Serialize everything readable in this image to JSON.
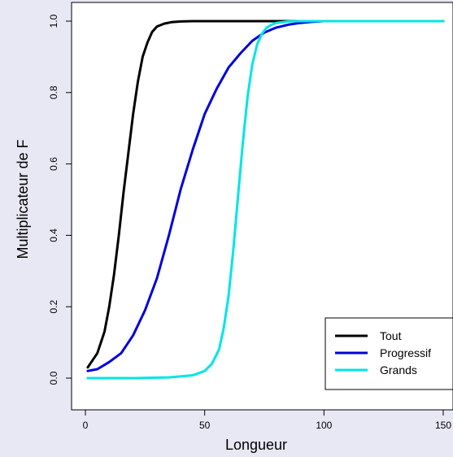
{
  "chart_data": {
    "type": "line",
    "xlabel": "Longueur",
    "ylabel": "Multiplicateur de F",
    "xlim": [
      0,
      150
    ],
    "ylim": [
      0,
      1
    ],
    "x_ticks": [
      0,
      50,
      100,
      150
    ],
    "x_tick_labels": [
      "0",
      "50",
      "100",
      "150"
    ],
    "y_ticks": [
      0,
      0.2,
      0.4,
      0.6,
      0.8,
      1.0
    ],
    "y_tick_labels": [
      "0.0",
      "0.2",
      "0.4",
      "0.6",
      "0.8",
      "1.0"
    ],
    "grid": false,
    "legend_position": "bottom-right",
    "series": [
      {
        "name": "Tout",
        "color": "#000000",
        "x": [
          1,
          5,
          8,
          10,
          12,
          14,
          16,
          18,
          20,
          22,
          24,
          26,
          28,
          30,
          33,
          36,
          40,
          45,
          50,
          60,
          80,
          100,
          120,
          150
        ],
        "y": [
          0.03,
          0.07,
          0.13,
          0.2,
          0.29,
          0.4,
          0.52,
          0.63,
          0.74,
          0.83,
          0.9,
          0.94,
          0.97,
          0.985,
          0.993,
          0.997,
          0.999,
          1.0,
          1.0,
          1.0,
          1.0,
          1.0,
          1.0,
          1.0
        ]
      },
      {
        "name": "Progressif",
        "color": "#0000dd",
        "x": [
          1,
          5,
          10,
          15,
          20,
          25,
          30,
          35,
          40,
          45,
          50,
          55,
          60,
          65,
          70,
          75,
          80,
          85,
          90,
          95,
          100,
          110,
          120,
          150
        ],
        "y": [
          0.02,
          0.025,
          0.045,
          0.07,
          0.12,
          0.19,
          0.28,
          0.4,
          0.53,
          0.64,
          0.74,
          0.81,
          0.87,
          0.91,
          0.945,
          0.968,
          0.982,
          0.99,
          0.995,
          0.998,
          1.0,
          1.0,
          1.0,
          1.0
        ]
      },
      {
        "name": "Grands",
        "color": "#00e5e5",
        "x": [
          1,
          20,
          35,
          45,
          50,
          53,
          56,
          58,
          60,
          62,
          64,
          66,
          68,
          70,
          72,
          74,
          76,
          78,
          80,
          85,
          90,
          100,
          120,
          150
        ],
        "y": [
          0.0,
          0.0,
          0.002,
          0.008,
          0.02,
          0.04,
          0.08,
          0.14,
          0.23,
          0.36,
          0.51,
          0.66,
          0.79,
          0.88,
          0.935,
          0.965,
          0.982,
          0.99,
          0.995,
          0.999,
          1.0,
          1.0,
          1.0,
          1.0
        ]
      }
    ]
  }
}
